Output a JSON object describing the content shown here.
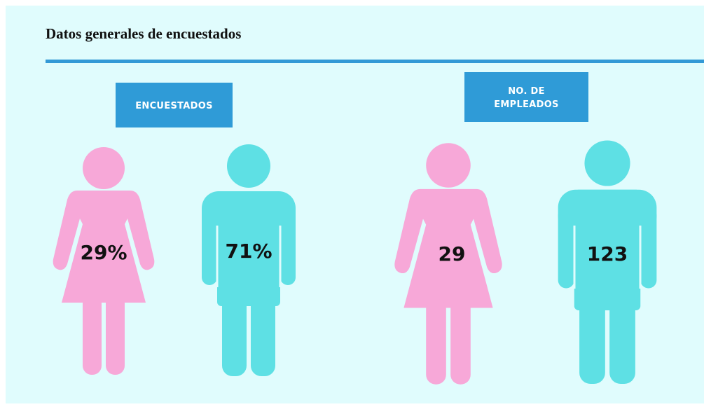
{
  "title": "Datos generales de encuestados",
  "panels": [
    {
      "label": [
        "ENCUESTADOS"
      ],
      "figures": [
        "29%",
        "71%"
      ]
    },
    {
      "label": [
        "NO. DE",
        "EMPLEADOS"
      ],
      "figures": [
        "29",
        "123"
      ]
    }
  ]
}
